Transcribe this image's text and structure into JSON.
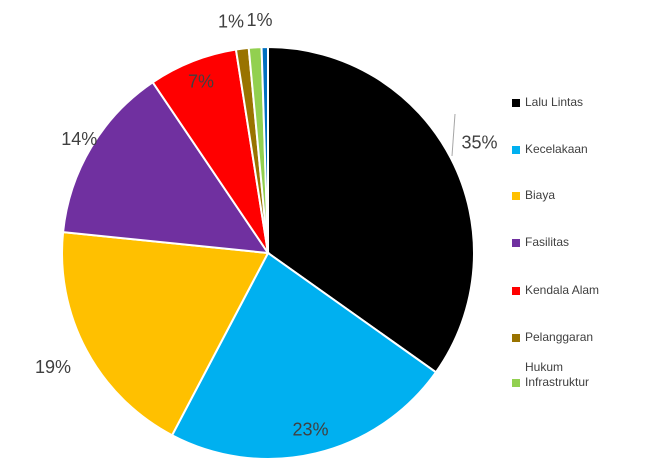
{
  "chart_data": {
    "type": "pie",
    "categories": [
      "Lalu Lintas",
      "Kecelakaan",
      "Biaya",
      "Fasilitas",
      "Kendala Alam",
      "Pelanggaran",
      "Hukum Infrastruktur",
      null
    ],
    "values": [
      35,
      23,
      19,
      14,
      7,
      1,
      1,
      0.5
    ],
    "value_labels": [
      "35%",
      "23%",
      "19%",
      "14%",
      "7%",
      "1%",
      "1%",
      null
    ],
    "colors": [
      "#000000",
      "#00b0f0",
      "#ffc000",
      "#7030a0",
      "#ff0000",
      "#997300",
      "#92d050",
      "#0070c0"
    ],
    "legend": "right"
  }
}
